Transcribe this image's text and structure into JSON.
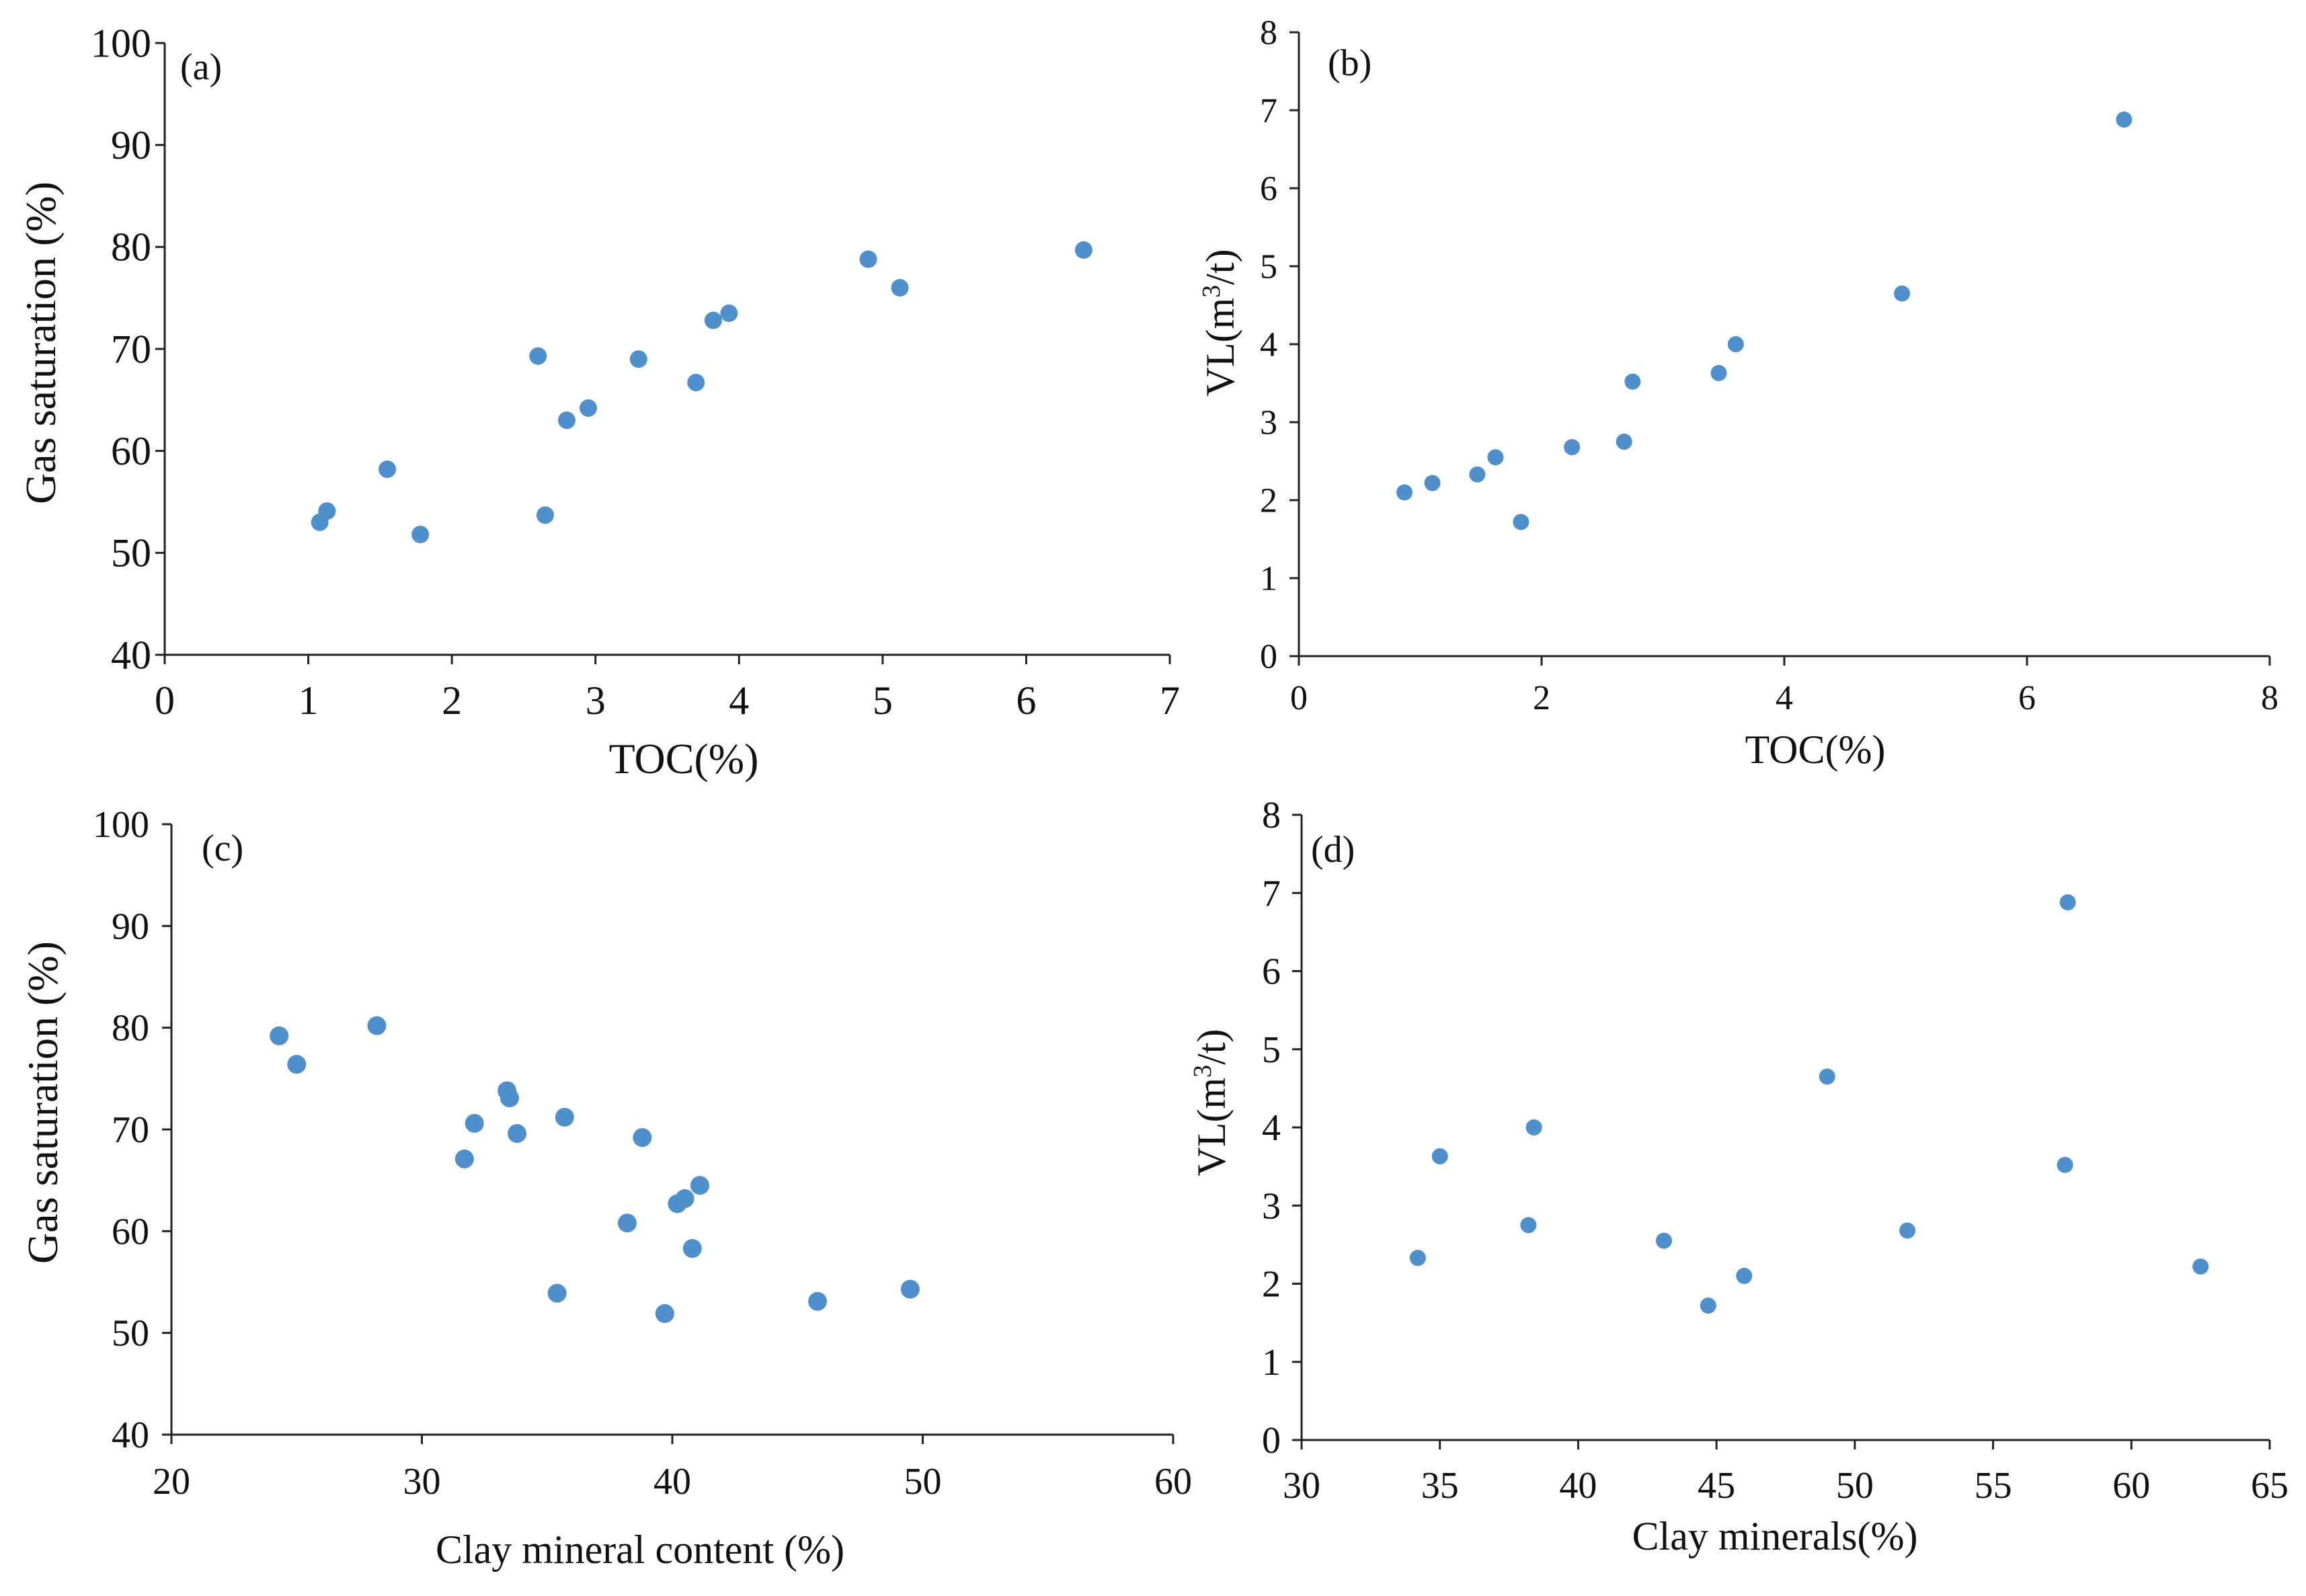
{
  "chart_data": [
    {
      "id": "a",
      "type": "scatter",
      "panel_label": "(a)",
      "xlabel": "TOC(%)",
      "ylabel": "Gas saturation  (%)",
      "xlim": [
        0,
        7
      ],
      "ylim": [
        40,
        100
      ],
      "xticks": [
        0,
        1,
        2,
        3,
        4,
        5,
        6,
        7
      ],
      "yticks": [
        40,
        50,
        60,
        70,
        80,
        90,
        100
      ],
      "points": [
        {
          "x": 1.08,
          "y": 53.0
        },
        {
          "x": 1.13,
          "y": 54.1
        },
        {
          "x": 1.55,
          "y": 58.2
        },
        {
          "x": 1.78,
          "y": 51.8
        },
        {
          "x": 2.6,
          "y": 69.3
        },
        {
          "x": 2.65,
          "y": 53.7
        },
        {
          "x": 2.8,
          "y": 63.0
        },
        {
          "x": 2.95,
          "y": 64.2
        },
        {
          "x": 3.3,
          "y": 69.0
        },
        {
          "x": 3.7,
          "y": 66.7
        },
        {
          "x": 3.82,
          "y": 72.8
        },
        {
          "x": 3.93,
          "y": 73.5
        },
        {
          "x": 4.9,
          "y": 78.8
        },
        {
          "x": 5.12,
          "y": 76.0
        },
        {
          "x": 6.4,
          "y": 79.7
        }
      ]
    },
    {
      "id": "b",
      "type": "scatter",
      "panel_label": "(b)",
      "xlabel": "TOC(%)",
      "ylabel": "VL(m³/t)",
      "xlim": [
        0,
        8
      ],
      "ylim": [
        0,
        8
      ],
      "xticks": [
        0,
        2,
        4,
        6,
        8
      ],
      "yticks": [
        0,
        1,
        2,
        3,
        4,
        5,
        6,
        7,
        8
      ],
      "points": [
        {
          "x": 0.87,
          "y": 2.1
        },
        {
          "x": 1.1,
          "y": 2.22
        },
        {
          "x": 1.47,
          "y": 2.33
        },
        {
          "x": 1.62,
          "y": 2.55
        },
        {
          "x": 1.83,
          "y": 1.72
        },
        {
          "x": 2.25,
          "y": 2.68
        },
        {
          "x": 2.68,
          "y": 2.75
        },
        {
          "x": 2.75,
          "y": 3.52
        },
        {
          "x": 3.46,
          "y": 3.63
        },
        {
          "x": 3.6,
          "y": 4.0
        },
        {
          "x": 4.97,
          "y": 4.65
        },
        {
          "x": 6.8,
          "y": 6.88
        }
      ]
    },
    {
      "id": "c",
      "type": "scatter",
      "panel_label": "(c)",
      "xlabel": "Clay mineral content  (%)",
      "ylabel": "Gas saturation  (%)",
      "xlim": [
        20,
        60
      ],
      "ylim": [
        40,
        100
      ],
      "xticks": [
        20,
        30,
        40,
        50,
        60
      ],
      "yticks": [
        40,
        50,
        60,
        70,
        80,
        90,
        100
      ],
      "points": [
        {
          "x": 24.3,
          "y": 79.2
        },
        {
          "x": 25.0,
          "y": 76.4
        },
        {
          "x": 28.2,
          "y": 80.2
        },
        {
          "x": 31.7,
          "y": 67.1
        },
        {
          "x": 32.1,
          "y": 70.6
        },
        {
          "x": 33.4,
          "y": 73.8
        },
        {
          "x": 33.5,
          "y": 73.1
        },
        {
          "x": 33.8,
          "y": 69.6
        },
        {
          "x": 35.4,
          "y": 53.9
        },
        {
          "x": 35.7,
          "y": 71.2
        },
        {
          "x": 38.2,
          "y": 60.8
        },
        {
          "x": 38.8,
          "y": 69.2
        },
        {
          "x": 39.7,
          "y": 51.9
        },
        {
          "x": 40.2,
          "y": 62.7
        },
        {
          "x": 40.5,
          "y": 63.2
        },
        {
          "x": 40.8,
          "y": 58.3
        },
        {
          "x": 41.1,
          "y": 64.5
        },
        {
          "x": 45.8,
          "y": 53.1
        },
        {
          "x": 49.5,
          "y": 54.3
        }
      ]
    },
    {
      "id": "d",
      "type": "scatter",
      "panel_label": "(d)",
      "xlabel": "Clay  minerals(%)",
      "ylabel": "VL(m³/t)",
      "xlim": [
        30,
        65
      ],
      "ylim": [
        0,
        8
      ],
      "xticks": [
        30,
        35,
        40,
        45,
        50,
        55,
        60,
        65
      ],
      "yticks": [
        0,
        1,
        2,
        3,
        4,
        5,
        6,
        7,
        8
      ],
      "points": [
        {
          "x": 34.2,
          "y": 2.33
        },
        {
          "x": 35.0,
          "y": 3.63
        },
        {
          "x": 38.2,
          "y": 2.75
        },
        {
          "x": 38.4,
          "y": 4.0
        },
        {
          "x": 43.1,
          "y": 2.55
        },
        {
          "x": 44.7,
          "y": 1.72
        },
        {
          "x": 46.0,
          "y": 2.1
        },
        {
          "x": 49.0,
          "y": 4.65
        },
        {
          "x": 51.9,
          "y": 2.68
        },
        {
          "x": 57.6,
          "y": 3.52
        },
        {
          "x": 57.7,
          "y": 6.88
        },
        {
          "x": 62.5,
          "y": 2.22
        }
      ]
    }
  ],
  "colors": {
    "marker": "#4f8fcc",
    "axis": "#222222",
    "text": "#111111"
  }
}
